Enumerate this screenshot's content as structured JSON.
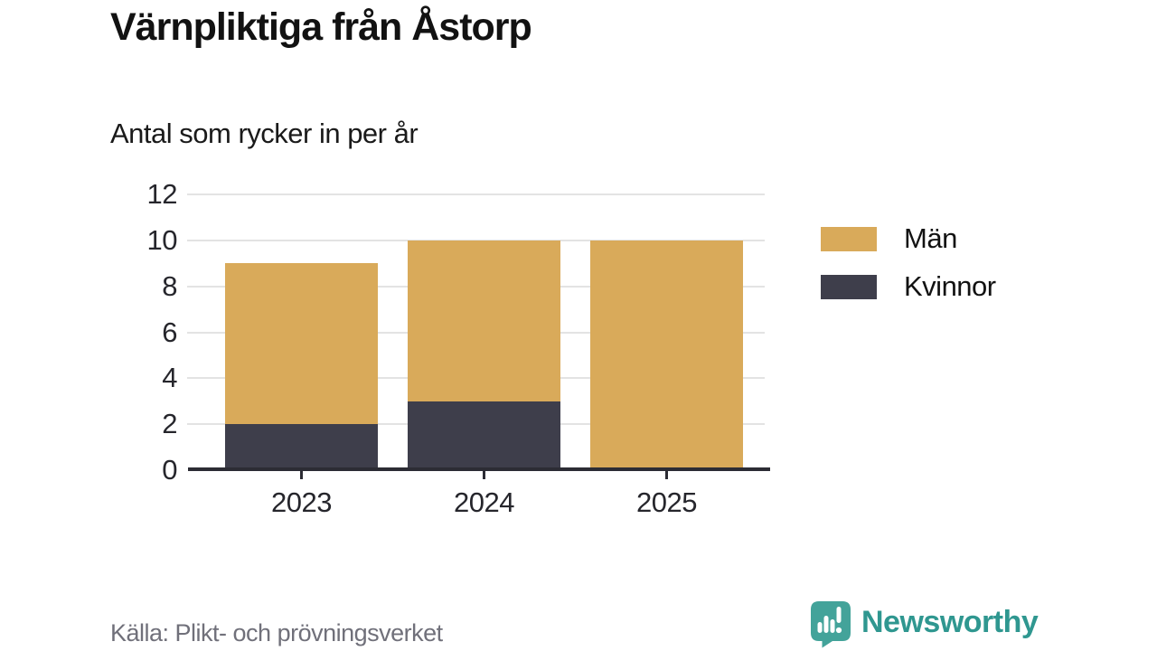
{
  "page": {
    "title": "Värnpliktiga från Åstorp",
    "subtitle": "Antal som rycker in per år",
    "source": "Källa: Plikt- och prövningsverket",
    "brand": "Newsworthy"
  },
  "colors": {
    "men": "#d9aa5a",
    "women": "#3e3e4b",
    "grid": "#e3e3e3",
    "axis": "#2c2c34",
    "tick_label": "#26262c",
    "title_text": "#121212",
    "source_text": "#70707a",
    "brand_icon_teal": "#43a39a",
    "brand_text_teal": "#2f9790"
  },
  "chart_data": {
    "type": "bar",
    "stacked": true,
    "title": "Värnpliktiga från Åstorp",
    "subtitle": "Antal som rycker in per år",
    "categories": [
      "2023",
      "2024",
      "2025"
    ],
    "series": [
      {
        "name": "Män",
        "color": "#d9aa5a",
        "values": [
          7,
          7,
          10
        ]
      },
      {
        "name": "Kvinnor",
        "color": "#3e3e4b",
        "values": [
          2,
          3,
          0
        ]
      }
    ],
    "stack_order_bottom_to_top": [
      "Kvinnor",
      "Män"
    ],
    "totals": [
      9,
      10,
      10
    ],
    "xlabel": "",
    "ylabel": "",
    "ylim": [
      0,
      12
    ],
    "yticks": [
      0,
      2,
      4,
      6,
      8,
      10,
      12
    ],
    "grid": true,
    "legend_position": "right"
  }
}
